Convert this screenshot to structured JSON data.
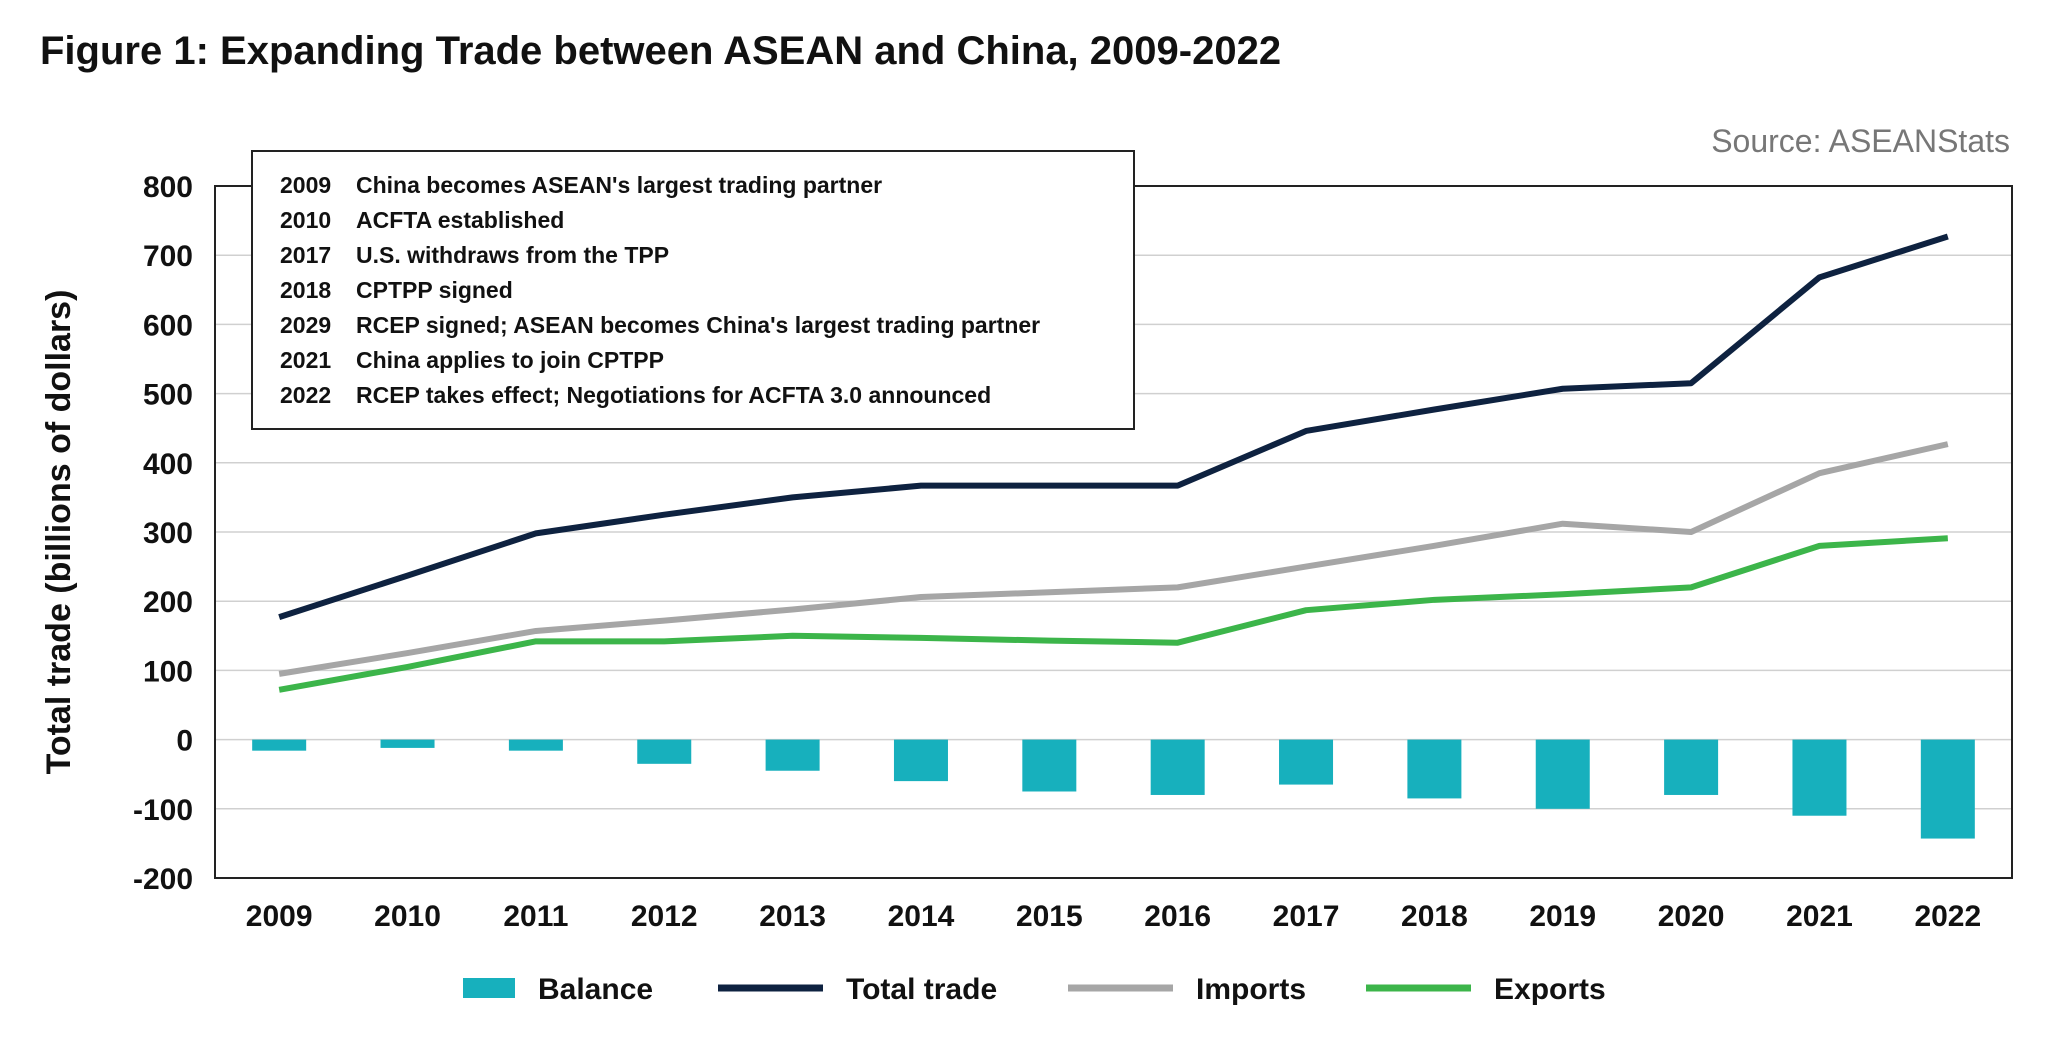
{
  "chart_data": {
    "type": "bar+line",
    "title": "Figure 1: Expanding Trade between ASEAN and China, 2009-2022",
    "source": "Source: ASEANStats",
    "ylabel": "Total trade (billions of dollars)",
    "xlabel": "",
    "ylim": [
      -200,
      800
    ],
    "yticks": [
      800,
      700,
      600,
      500,
      400,
      300,
      200,
      100,
      0,
      -100,
      -200
    ],
    "grid": true,
    "legend_position": "bottom",
    "categories": [
      "2009",
      "2010",
      "2011",
      "2012",
      "2013",
      "2014",
      "2015",
      "2016",
      "2017",
      "2018",
      "2019",
      "2020",
      "2021",
      "2022"
    ],
    "series": [
      {
        "name": "Balance",
        "type": "bar",
        "color": "#17b0bd",
        "values": [
          -16,
          -12,
          -16,
          -35,
          -45,
          -60,
          -75,
          -80,
          -65,
          -85,
          -100,
          -80,
          -110,
          -143
        ]
      },
      {
        "name": "Total trade",
        "type": "line",
        "color": "#0e2240",
        "values": [
          177,
          237,
          298,
          325,
          350,
          367,
          367,
          367,
          446,
          477,
          507,
          515,
          668,
          727
        ]
      },
      {
        "name": "Imports",
        "type": "line",
        "color": "#a6a6a6",
        "values": [
          95,
          125,
          157,
          172,
          188,
          206,
          213,
          220,
          250,
          280,
          312,
          300,
          385,
          427
        ]
      },
      {
        "name": "Exports",
        "type": "line",
        "color": "#3cb54a",
        "values": [
          72,
          105,
          142,
          142,
          150,
          147,
          143,
          140,
          187,
          202,
          210,
          220,
          280,
          291
        ]
      }
    ],
    "annotations": [
      {
        "year": "2009",
        "text": "China becomes ASEAN's largest trading partner"
      },
      {
        "year": "2010",
        "text": "ACFTA established"
      },
      {
        "year": "2017",
        "text": "U.S. withdraws from the TPP"
      },
      {
        "year": "2018",
        "text": "CPTPP signed"
      },
      {
        "year": "2029",
        "text": "RCEP signed; ASEAN becomes China's largest trading partner"
      },
      {
        "year": "2021",
        "text": "China applies to join CPTPP"
      },
      {
        "year": "2022",
        "text": "RCEP takes effect; Negotiations for ACFTA 3.0 announced"
      }
    ]
  }
}
